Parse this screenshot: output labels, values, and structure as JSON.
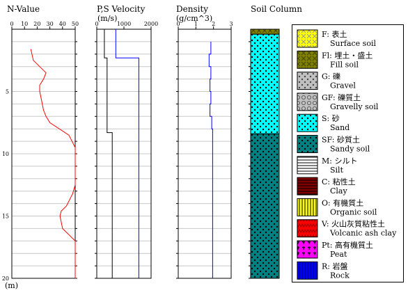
{
  "chart_data": [
    {
      "type": "line",
      "title": "N-Value",
      "xlim": [
        0,
        50
      ],
      "xticks": [
        0,
        10,
        20,
        30,
        40,
        50
      ],
      "ylim": [
        0,
        20
      ],
      "yticks": [
        5,
        10,
        15,
        20
      ],
      "y_unit": "(m)",
      "series": [
        {
          "color": "#ff0000",
          "points": [
            [
              15,
              1.6
            ],
            [
              17,
              2.5
            ],
            [
              22,
              3
            ],
            [
              27,
              3.5
            ],
            [
              25,
              4
            ],
            [
              22,
              4.5
            ],
            [
              22,
              5
            ],
            [
              23,
              5.5
            ],
            [
              24,
              6
            ],
            [
              25,
              6.5
            ],
            [
              27,
              7
            ],
            [
              30,
              7.5
            ],
            [
              45,
              8.5
            ],
            [
              50,
              9.5
            ],
            [
              50,
              10
            ],
            [
              50,
              10.5
            ],
            [
              50,
              11
            ],
            [
              50,
              11.5
            ],
            [
              50,
              12
            ],
            [
              50,
              12.5
            ],
            [
              48,
              13.2
            ],
            [
              43,
              14.2
            ],
            [
              39,
              14.6
            ],
            [
              38,
              15
            ],
            [
              39,
              15.5
            ],
            [
              40,
              16
            ],
            [
              45,
              16.5
            ],
            [
              50,
              17
            ],
            [
              50,
              20
            ]
          ]
        }
      ]
    },
    {
      "type": "line",
      "title": "P,S Velocity",
      "subtitle": "(m/s)",
      "xlim": [
        0,
        2000
      ],
      "xticks": [
        0,
        1000,
        2000
      ],
      "ylim": [
        0,
        20
      ],
      "series": [
        {
          "color": "#0000ff",
          "points": [
            [
              700,
              0
            ],
            [
              700,
              2.3
            ],
            [
              1550,
              2.3
            ],
            [
              1550,
              20
            ]
          ]
        },
        {
          "color": "#000000",
          "points": [
            [
              280,
              0
            ],
            [
              280,
              2.3
            ],
            [
              380,
              2.3
            ],
            [
              380,
              8.3
            ],
            [
              570,
              8.3
            ],
            [
              570,
              20
            ]
          ]
        }
      ]
    },
    {
      "type": "line",
      "title": "Density",
      "subtitle": "(g/cm^3)",
      "xlim": [
        0,
        3
      ],
      "xticks": [
        0,
        1,
        2,
        3
      ],
      "ylim": [
        0,
        20
      ],
      "series": [
        {
          "color": "#0000ff",
          "points": [
            [
              1.85,
              1
            ],
            [
              1.85,
              2
            ],
            [
              1.75,
              2
            ],
            [
              1.75,
              3
            ],
            [
              1.85,
              3
            ],
            [
              1.85,
              4
            ],
            [
              1.8,
              4
            ],
            [
              1.8,
              5
            ],
            [
              1.85,
              5
            ],
            [
              1.85,
              6
            ],
            [
              1.8,
              6
            ],
            [
              1.8,
              7
            ],
            [
              1.9,
              7
            ],
            [
              1.9,
              8
            ],
            [
              1.95,
              8
            ],
            [
              1.95,
              20
            ]
          ]
        }
      ]
    }
  ],
  "soil_column": {
    "title": "Soil Column",
    "layers": [
      {
        "code": "Fl",
        "from": 0,
        "to": 0.4
      },
      {
        "code": "S",
        "from": 0.4,
        "to": 8.4
      },
      {
        "code": "SF",
        "from": 8.4,
        "to": 20
      }
    ]
  },
  "legend": [
    {
      "code": "F",
      "jp": "F: 表土",
      "en": "Surface soil",
      "bg": "#ffff00",
      "pattern": "cross",
      "fg": "#999999"
    },
    {
      "code": "Fl",
      "jp": "Fl: 埋土・盛土",
      "en": "Fill soil",
      "bg": "#808000",
      "pattern": "cross",
      "fg": "#444400"
    },
    {
      "code": "G",
      "jp": "G: 礫",
      "en": "Gravel",
      "bg": "#c0c0c0",
      "pattern": "dots",
      "fg": "#444444"
    },
    {
      "code": "GF",
      "jp": "GF: 礫質土",
      "en": "Gravelly soil",
      "bg": "#c0c0c0",
      "pattern": "circles",
      "fg": "#444444"
    },
    {
      "code": "S",
      "jp": "S: 砂",
      "en": "Sand",
      "bg": "#00ffff",
      "pattern": "dots",
      "fg": "#000000"
    },
    {
      "code": "SF",
      "jp": "SF: 砂質土",
      "en": "Sandy soil",
      "bg": "#008080",
      "pattern": "dots",
      "fg": "#000000"
    },
    {
      "code": "M",
      "jp": "M: シルト",
      "en": "Silt",
      "bg": "#ffffff",
      "pattern": "dash",
      "fg": "#000000"
    },
    {
      "code": "C",
      "jp": "C: 粘性土",
      "en": "Clay",
      "bg": "#800000",
      "pattern": "hlines",
      "fg": "#000000"
    },
    {
      "code": "O",
      "jp": "O: 有機質土",
      "en": "Organic soil",
      "bg": "#ffff00",
      "pattern": "vlines",
      "fg": "#000000"
    },
    {
      "code": "V",
      "jp": "V: 火山灰質粘性土",
      "en": "Volcanic ash clay",
      "bg": "#ff0000",
      "pattern": "zigzag",
      "fg": "#990000"
    },
    {
      "code": "Pt",
      "jp": "Pt: 高有機質土",
      "en": "Peat",
      "bg": "#ff00ff",
      "pattern": "grass",
      "fg": "#000000"
    },
    {
      "code": "R",
      "jp": "R: 岩盤",
      "en": "Rock",
      "bg": "#0000ff",
      "pattern": "vlines",
      "fg": "#000060"
    }
  ]
}
